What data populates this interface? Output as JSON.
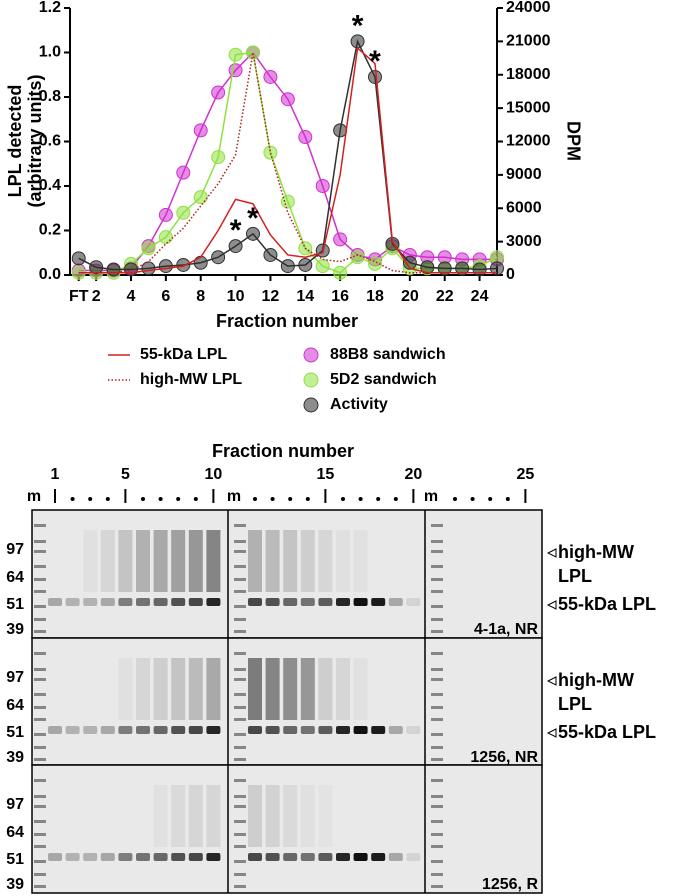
{
  "chart_data": {
    "type": "line",
    "xlabel": "Fraction number",
    "ylabel": [
      "LPL detected",
      "(arbitrary units)"
    ],
    "y2label": "DPM",
    "x": [
      1,
      2,
      3,
      4,
      5,
      6,
      7,
      8,
      9,
      10,
      11,
      12,
      13,
      14,
      15,
      16,
      17,
      18,
      19,
      20,
      21,
      22,
      23,
      24,
      25
    ],
    "xlim": [
      0.5,
      25
    ],
    "xticks": [
      {
        "value": 1,
        "label": "FT"
      },
      2,
      4,
      6,
      8,
      10,
      12,
      14,
      16,
      18,
      20,
      22,
      24
    ],
    "ylim": [
      0,
      1.2
    ],
    "yticks": [
      {
        "value": 0,
        "label": "0.0"
      },
      0.2,
      0.4,
      0.6,
      0.8,
      {
        "value": 1,
        "label": "1.0"
      },
      1.2
    ],
    "y2lim": [
      0,
      24000
    ],
    "y2ticks": [
      0,
      3000,
      6000,
      9000,
      12000,
      15000,
      18000,
      21000,
      24000
    ],
    "series": [
      {
        "name": "55-kDa LPL",
        "color": "#d42020",
        "style": "solid",
        "marker": "none",
        "values": [
          0.01,
          0.01,
          0.01,
          0.01,
          0.02,
          0.03,
          0.04,
          0.08,
          0.2,
          0.34,
          0.32,
          0.18,
          0.09,
          0.08,
          0.1,
          0.45,
          1.02,
          0.95,
          0.15,
          0.03,
          0.01,
          0.01,
          0.01,
          0.01,
          0.01
        ]
      },
      {
        "name": "high-MW LPL",
        "color": "#b02020",
        "style": "dotted",
        "marker": "none",
        "values": [
          0.01,
          0.01,
          0.01,
          0.02,
          0.06,
          0.14,
          0.21,
          0.31,
          0.41,
          0.54,
          1.0,
          0.55,
          0.28,
          0.12,
          0.07,
          0.06,
          0.09,
          0.06,
          0.02,
          0.01,
          0.01,
          0.01,
          0.01,
          0.01,
          0.01
        ]
      },
      {
        "name": "88B8 sandwich",
        "color": "#d030d0",
        "style": "solid",
        "marker": "circle",
        "values": [
          0.02,
          0.02,
          0.02,
          0.03,
          0.13,
          0.27,
          0.46,
          0.65,
          0.82,
          0.92,
          1.0,
          0.89,
          0.79,
          0.62,
          0.4,
          0.16,
          0.09,
          0.07,
          0.13,
          0.09,
          0.08,
          0.08,
          0.07,
          0.07,
          0.07
        ]
      },
      {
        "name": "5D2 sandwich",
        "color": "#90e040",
        "style": "solid",
        "marker": "circle",
        "values": [
          0.01,
          0.01,
          0.01,
          0.05,
          0.12,
          0.17,
          0.28,
          0.35,
          0.53,
          0.99,
          1.0,
          0.55,
          0.33,
          0.12,
          0.04,
          0.01,
          0.08,
          0.05,
          0.12,
          0.03,
          0.03,
          0.03,
          0.03,
          0.04,
          0.08
        ]
      },
      {
        "name": "Activity",
        "color": "#303030",
        "style": "solid",
        "marker": "circle",
        "axis": "y2",
        "values": [
          1500,
          700,
          500,
          500,
          600,
          800,
          900,
          1100,
          1600,
          2600,
          3700,
          1800,
          800,
          900,
          2200,
          13000,
          21000,
          17800,
          2800,
          1100,
          700,
          600,
          600,
          500,
          600
        ]
      }
    ],
    "annotations": [
      {
        "text": "*",
        "x": 10
      },
      {
        "text": "*",
        "x": 11
      },
      {
        "text": "*",
        "x": 17
      },
      {
        "text": "*",
        "x": 18
      }
    ]
  },
  "blot": {
    "title": "Fraction number",
    "lane_numbers": [
      "1",
      "5",
      "10",
      "15",
      "20",
      "25"
    ],
    "marker_lane": "m",
    "mw_markers": [
      "97",
      "64",
      "51",
      "39"
    ],
    "band_labels": [
      "high-MW",
      "LPL",
      "55-kDa LPL"
    ],
    "panels": [
      "4-1a, NR",
      "1256, NR",
      "1256, R"
    ]
  }
}
